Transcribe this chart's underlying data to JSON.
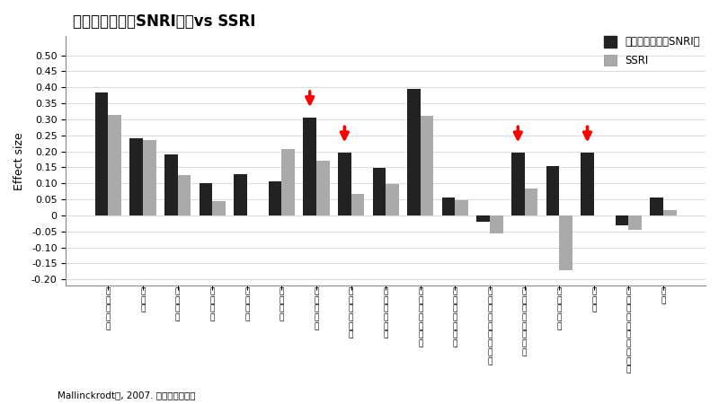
{
  "title": "サインバルタ（SNRI）　vs SSRI",
  "ylabel": "Effect size",
  "categories": [
    "抑うつ気分",
    "罪責感",
    "自殺念慮",
    "入眠障害",
    "熟眠障害",
    "早朝覚醒",
    "仕事と活動",
    "精神運動抑制",
    "精神運動焦燥",
    "不安、精神症状",
    "不安、身体症状",
    "身体症状、消化器系",
    "一般的な身体症状",
    "生殖器症状",
    "心気症",
    "この一週間の体重減少",
    "病識"
  ],
  "snri_values": [
    0.385,
    0.24,
    0.19,
    0.1,
    0.13,
    0.105,
    0.305,
    0.195,
    0.148,
    0.395,
    0.055,
    -0.02,
    0.195,
    0.155,
    0.195,
    -0.03,
    0.055
  ],
  "ssri_values": [
    0.315,
    0.235,
    0.127,
    0.045,
    0.0,
    0.207,
    0.172,
    0.068,
    0.097,
    0.31,
    0.047,
    -0.055,
    0.085,
    -0.17,
    0.0,
    -0.045,
    0.018
  ],
  "snri_color": "#222222",
  "ssri_color": "#aaaaaa",
  "ylim": [
    -0.22,
    0.56
  ],
  "yticks": [
    -0.2,
    -0.15,
    -0.1,
    -0.05,
    0.0,
    0.05,
    0.1,
    0.15,
    0.2,
    0.25,
    0.3,
    0.35,
    0.4,
    0.45,
    0.5
  ],
  "legend_snri": "サインバルタ（SNRI）",
  "legend_ssri": "SSRI",
  "footnote": "Mallinckrodtら, 2007. より引用、作成",
  "background_color": "#ffffff",
  "grid_color": "#cccccc",
  "arrow_configs": [
    {
      "bar_idx": 6,
      "use_snri": true
    },
    {
      "bar_idx": 7,
      "use_snri": true
    },
    {
      "bar_idx": 12,
      "use_snri": true
    },
    {
      "bar_idx": 14,
      "use_snri": true
    }
  ]
}
